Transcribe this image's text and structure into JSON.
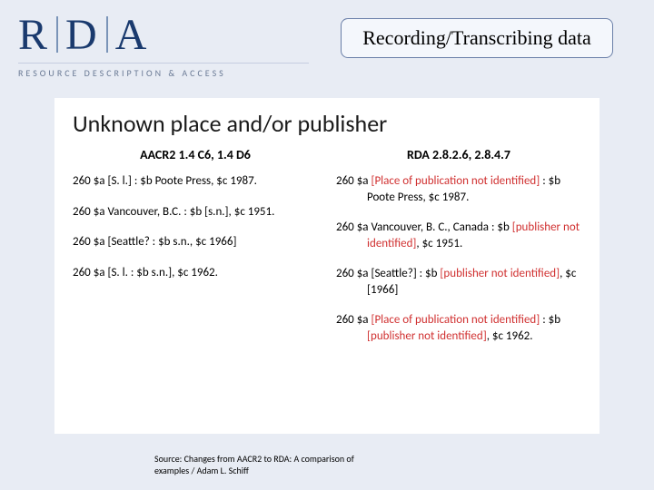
{
  "logo": {
    "letters": [
      "R",
      "D",
      "A"
    ],
    "subtitle": "RESOURCE DESCRIPTION & ACCESS"
  },
  "title_box": "Recording/Transcribing data",
  "panel": {
    "heading": "Unknown place and/or publisher",
    "left": {
      "header": "AACR2  1.4 C6, 1.4 D6",
      "entries": [
        {
          "segments": [
            {
              "t": "260   $a [S. l.] : $b Poote Press, $c 1987."
            }
          ]
        },
        {
          "segments": [
            {
              "t": "260   $a Vancouver, B.C. : $b [s.n.], $c 1951."
            }
          ]
        },
        {
          "segments": [
            {
              "t": "260   $a [Seattle? : $b s.n., $c 1966]"
            }
          ]
        },
        {
          "segments": [
            {
              "t": "260   $a [S. l. : $b s.n.], $c 1962."
            }
          ]
        }
      ]
    },
    "right": {
      "header": "RDA  2.8.2.6, 2.8.4.7",
      "entries": [
        {
          "segments": [
            {
              "t": "260   $a  "
            },
            {
              "t": "[Place of publication not identified]",
              "hl": true
            },
            {
              "t": " : $b Poote Press, $c 1987."
            }
          ]
        },
        {
          "segments": [
            {
              "t": "260   $a Vancouver, B. C., Canada : $b "
            },
            {
              "t": "[publisher not identified]",
              "hl": true
            },
            {
              "t": ", $c 1951."
            }
          ]
        },
        {
          "segments": [
            {
              "t": "260   $a  [Seattle?] : $b "
            },
            {
              "t": "[publisher not identified]",
              "hl": true
            },
            {
              "t": ", $c [1966]"
            }
          ]
        },
        {
          "segments": [
            {
              "t": "260   $a "
            },
            {
              "t": "[Place of publication not identified]",
              "hl": true
            },
            {
              "t": " : $b "
            },
            {
              "t": "[publisher not identified]",
              "hl": true
            },
            {
              "t": ", $c 1962."
            }
          ]
        }
      ]
    }
  },
  "source": "Source: Changes from AACR2 to RDA: A comparison of examples / Adam L. Schiff",
  "colors": {
    "background": "#e8ecf4",
    "logo_text": "#1a3a6e",
    "logo_separator": "#7a94b8",
    "subtitle_text": "#6a7a95",
    "title_box_bg": "#f4f7fc",
    "title_box_border": "#6a7fa8",
    "highlight": "#d03030",
    "panel_bg": "#ffffff"
  }
}
